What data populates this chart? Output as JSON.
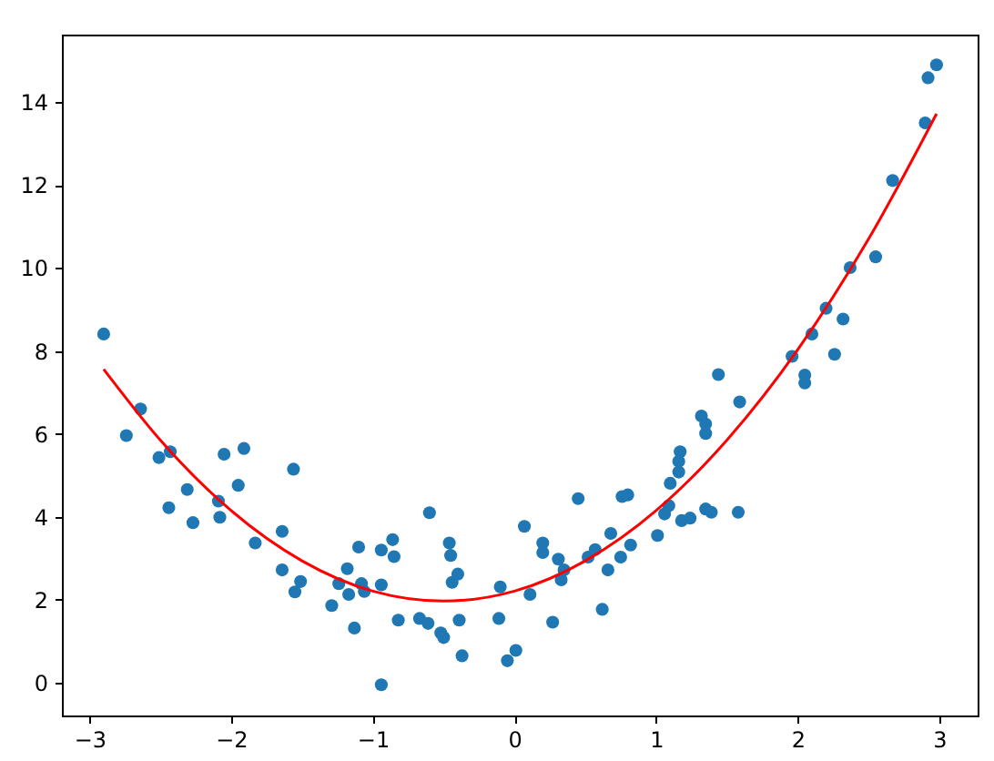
{
  "chart_data": {
    "type": "scatter",
    "xlim": [
      -3.195,
      3.27
    ],
    "ylim": [
      -0.79,
      15.63
    ],
    "xticks": [
      {
        "value": -3,
        "label": "−3"
      },
      {
        "value": -2,
        "label": "−2"
      },
      {
        "value": -1,
        "label": "−1"
      },
      0,
      1,
      2,
      3
    ],
    "yticks": [
      0,
      2,
      4,
      6,
      8,
      10,
      12,
      14
    ],
    "marker": "circle",
    "grid": false,
    "series": [
      {
        "color": "#1f77b4",
        "x": [
          -2.9,
          -2.74,
          -2.64,
          -2.51,
          -2.43,
          -2.44,
          -2.31,
          -2.27,
          -2.05,
          -1.91,
          -2.09,
          -2.08,
          -1.95,
          -1.83,
          -1.56,
          -1.64,
          -1.64,
          -1.51,
          -1.55,
          -1.29,
          -1.24,
          -1.18,
          -1.17,
          -1.1,
          -1.13,
          -1.08,
          -1.06,
          -0.94,
          -0.94,
          -0.86,
          -0.85,
          -0.94,
          -0.82,
          -0.67,
          -0.61,
          -0.6,
          -0.52,
          -0.5,
          -0.46,
          -0.45,
          -0.44,
          -0.4,
          -0.39,
          -0.37,
          -0.11,
          -0.1,
          -0.05,
          0.01,
          0.07,
          0.11,
          0.2,
          0.2,
          0.27,
          0.31,
          0.33,
          0.35,
          0.45,
          0.52,
          0.57,
          0.62,
          0.66,
          0.68,
          0.75,
          0.76,
          0.8,
          0.82,
          1.01,
          1.06,
          1.09,
          1.1,
          1.16,
          1.16,
          1.17,
          1.18,
          1.24,
          1.32,
          1.35,
          1.35,
          1.35,
          1.39,
          1.44,
          1.58,
          1.59,
          1.96,
          2.05,
          2.05,
          2.1,
          2.2,
          2.26,
          2.32,
          2.37,
          2.55,
          2.67,
          2.9,
          2.92,
          2.98
        ],
        "values": [
          8.41,
          5.96,
          6.6,
          5.43,
          5.57,
          4.22,
          4.66,
          3.86,
          5.51,
          5.65,
          4.38,
          3.99,
          4.76,
          3.37,
          5.15,
          3.65,
          2.72,
          2.44,
          2.19,
          1.86,
          2.39,
          2.75,
          2.13,
          3.27,
          1.32,
          2.39,
          2.2,
          2.36,
          3.2,
          3.45,
          3.04,
          -0.05,
          1.51,
          1.55,
          1.43,
          4.1,
          1.2,
          1.09,
          3.37,
          3.07,
          2.42,
          2.62,
          1.51,
          0.65,
          1.55,
          2.31,
          0.53,
          0.78,
          3.77,
          2.13,
          3.37,
          3.14,
          1.46,
          2.98,
          2.48,
          2.72,
          4.44,
          3.03,
          3.21,
          1.77,
          2.72,
          3.6,
          3.03,
          4.49,
          4.53,
          3.32,
          3.55,
          4.07,
          4.27,
          4.81,
          5.08,
          5.34,
          5.57,
          3.91,
          3.97,
          6.43,
          6.24,
          6.01,
          4.19,
          4.11,
          7.43,
          4.11,
          6.77,
          7.87,
          7.42,
          7.23,
          8.41,
          9.03,
          7.92,
          8.77,
          10.01,
          10.27,
          12.11,
          13.5,
          14.59,
          14.9
        ]
      },
      {
        "type": "line",
        "color": "#ff0000",
        "line_style": "solid",
        "marker": "none",
        "x": [
          -2.9,
          -2.5,
          -2,
          -1.5,
          -1,
          -0.5,
          0,
          0.5,
          1,
          1.5,
          2,
          2.5,
          2.98
        ],
        "values": [
          7.56,
          5.85,
          4.15,
          2.94,
          2.21,
          1.97,
          2.21,
          2.94,
          4.15,
          5.85,
          8.03,
          10.7,
          13.72
        ]
      }
    ]
  }
}
